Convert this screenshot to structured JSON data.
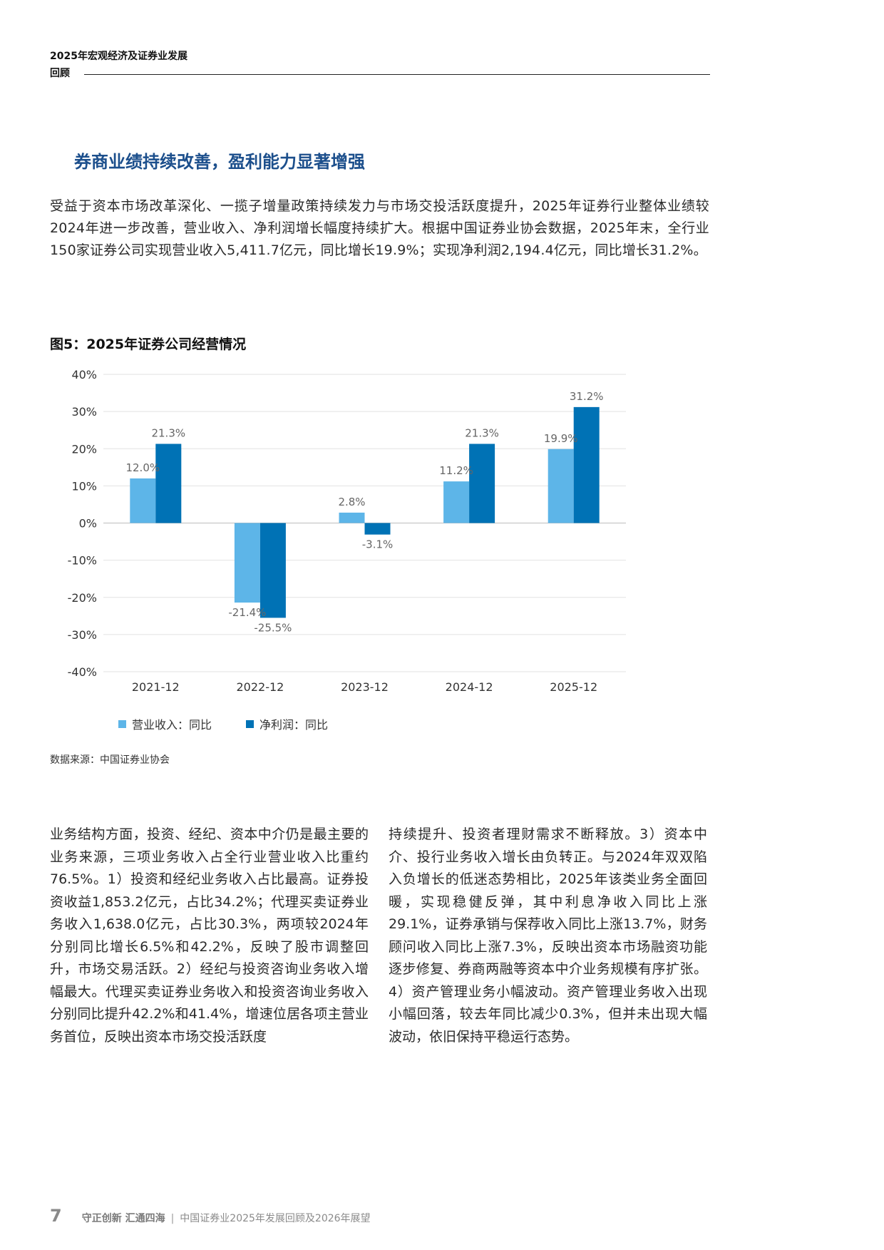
{
  "header": {
    "title_line1": "2025年宏观经济及证券业发展",
    "title_line2": "回顾"
  },
  "section": {
    "title": "券商业绩持续改善，盈利能力显著增强"
  },
  "intro_paragraph": "受益于资本市场改革深化、一揽子增量政策持续发力与市场交投活跃度提升，2025年证券行业整体业绩较2024年进一步改善，营业收入、净利润增长幅度持续扩大。根据中国证券业协会数据，2025年末，全行业150家证券公司实现营业收入5,411.7亿元，同比增长19.9%；实现净利润2,194.4亿元，同比增长31.2%。",
  "figure": {
    "title": "图5：2025年证券公司经营情况",
    "source": "数据来源：中国证券业协会"
  },
  "chart_data": {
    "type": "bar",
    "title": "",
    "xlabel": "",
    "ylabel": "",
    "categories": [
      "2021-12",
      "2022-12",
      "2023-12",
      "2024-12",
      "2025-12"
    ],
    "series": [
      {
        "name": "营业收入：同比",
        "values": [
          12.0,
          -21.4,
          2.8,
          11.2,
          19.9
        ],
        "labels": [
          "12.0%",
          "-21.4%",
          "2.8%",
          "11.2%",
          "19.9%"
        ],
        "color": "#5db5e8"
      },
      {
        "name": "净利润：同比",
        "values": [
          21.3,
          -25.5,
          -3.1,
          21.3,
          31.2
        ],
        "labels": [
          "21.3%",
          "-25.5%",
          "-3.1%",
          "21.3%",
          "31.2%"
        ],
        "color": "#0072b5"
      }
    ],
    "ylim": [
      -40,
      40
    ],
    "yticks": [
      40,
      30,
      20,
      10,
      0,
      -10,
      -20,
      -30,
      -40
    ],
    "ytick_labels": [
      "40%",
      "30%",
      "20%",
      "10%",
      "0%",
      "-10%",
      "-20%",
      "-30%",
      "-40%"
    ],
    "grid": true,
    "legend_position": "bottom-left"
  },
  "body": {
    "left_column": "业务结构方面，投资、经纪、资本中介仍是最主要的业务来源，三项业务收入占全行业营业收入比重约76.5%。1）投资和经纪业务收入占比最高。证券投资收益1,853.2亿元，占比34.2%；代理买卖证券业务收入1,638.0亿元，占比30.3%，两项较2024年分别同比增长6.5%和42.2%，反映了股市调整回升，市场交易活跃。2）经纪与投资咨询业务收入增幅最大。代理买卖证券业务收入和投资咨询业务收入分别同比提升42.2%和41.4%，增速位居各项主营业务首位，反映出资本市场交投活跃度",
    "right_column": "持续提升、投资者理财需求不断释放。3）资本中介、投行业务收入增长由负转正。与2024年双双陷入负增长的低迷态势相比，2025年该类业务全面回暖，实现稳健反弹，其中利息净收入同比上涨29.1%，证券承销与保荐收入同比上涨13.7%，财务顾问收入同比上涨7.3%，反映出资本市场融资功能逐步修复、券商两融等资本中介业务规模有序扩张。4）资产管理业务小幅波动。资产管理业务收入出现小幅回落，较去年同比减少0.3%，但并未出现大幅波动，依旧保持平稳运行态势。"
  },
  "footer": {
    "page_number": "7",
    "slogan": "守正创新 汇通四海",
    "separator": "|",
    "report_title": "中国证券业2025年发展回顾及2026年展望"
  }
}
